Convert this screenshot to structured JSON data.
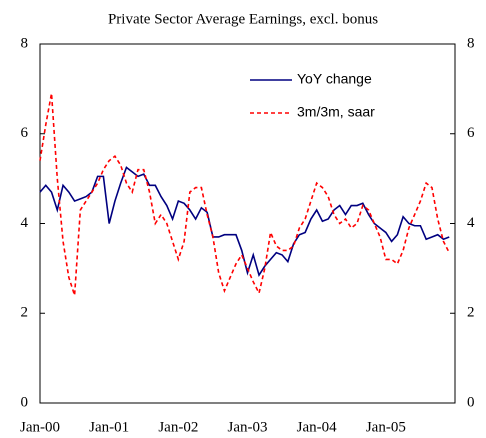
{
  "chart_data": {
    "type": "line",
    "title": "Private Sector Average Earnings, excl. bonus",
    "categories": [
      "Jan-00",
      null,
      null,
      null,
      null,
      null,
      null,
      null,
      null,
      null,
      null,
      null,
      "Jan-01",
      null,
      null,
      null,
      null,
      null,
      null,
      null,
      null,
      null,
      null,
      null,
      "Jan-02",
      null,
      null,
      null,
      null,
      null,
      null,
      null,
      null,
      null,
      null,
      null,
      "Jan-03",
      null,
      null,
      null,
      null,
      null,
      null,
      null,
      null,
      null,
      null,
      null,
      "Jan-04",
      null,
      null,
      null,
      null,
      null,
      null,
      null,
      null,
      null,
      null,
      null,
      "Jan-05",
      null,
      null,
      null,
      null,
      null,
      null,
      null,
      null,
      null,
      null,
      null
    ],
    "series": [
      {
        "name": "YoY change",
        "color": "#000080",
        "dashed": false,
        "values": [
          4.7,
          4.85,
          4.7,
          4.3,
          4.85,
          4.7,
          4.5,
          4.55,
          4.6,
          4.7,
          5.05,
          5.05,
          4.0,
          4.5,
          4.9,
          5.25,
          5.15,
          5.05,
          5.1,
          4.85,
          4.85,
          4.6,
          4.4,
          4.1,
          4.5,
          4.45,
          4.3,
          4.1,
          4.35,
          4.25,
          3.7,
          3.7,
          3.75,
          3.75,
          3.75,
          3.4,
          2.9,
          3.3,
          2.85,
          3.05,
          3.2,
          3.35,
          3.3,
          3.15,
          3.55,
          3.75,
          3.8,
          4.1,
          4.3,
          4.05,
          4.1,
          4.3,
          4.4,
          4.2,
          4.4,
          4.4,
          4.45,
          4.2,
          4.0,
          3.9,
          3.8,
          3.6,
          3.75,
          4.15,
          4.0,
          3.95,
          3.95,
          3.65,
          3.7,
          3.75,
          3.65,
          3.7
        ]
      },
      {
        "name": "3m/3m, saar",
        "color": "#ff0000",
        "dashed": true,
        "values": [
          5.4,
          6.2,
          6.9,
          5.0,
          3.6,
          2.8,
          2.4,
          4.3,
          4.5,
          4.7,
          4.9,
          5.2,
          5.4,
          5.5,
          5.3,
          4.9,
          4.7,
          5.2,
          5.2,
          4.7,
          4.0,
          4.2,
          4.0,
          3.6,
          3.2,
          3.6,
          4.7,
          4.8,
          4.8,
          4.2,
          3.7,
          2.9,
          2.5,
          2.8,
          3.1,
          3.3,
          3.0,
          2.7,
          2.45,
          3.0,
          3.8,
          3.5,
          3.4,
          3.4,
          3.5,
          3.9,
          4.1,
          4.5,
          4.9,
          4.8,
          4.6,
          4.2,
          4.0,
          4.1,
          3.9,
          4.0,
          4.4,
          4.3,
          4.0,
          3.7,
          3.2,
          3.2,
          3.1,
          3.4,
          3.9,
          4.2,
          4.5,
          4.9,
          4.8,
          4.1,
          3.6,
          3.35
        ]
      }
    ],
    "ylim": [
      0,
      8
    ],
    "yticks": [
      0,
      2,
      4,
      6,
      8
    ],
    "y2lim": [
      0,
      8
    ],
    "y2ticks": [
      0,
      2,
      4,
      6,
      8
    ],
    "legend": "upper right",
    "grid": false
  }
}
